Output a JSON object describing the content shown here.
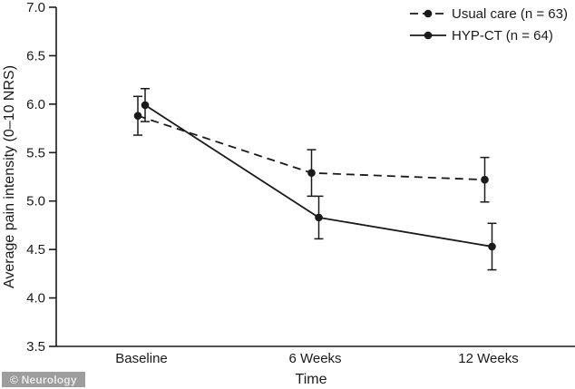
{
  "watermark": {
    "text": "© Neurology",
    "bg_color": "#9d9d9d",
    "text_color": "#e8e8e8"
  },
  "chart_data": {
    "type": "line",
    "title": "",
    "xlabel": "Time",
    "ylabel": "Average pain intensity (0–10 NRS)",
    "categories": [
      "Baseline",
      "6 Weeks",
      "12 Weeks"
    ],
    "ylim": [
      3.5,
      7.0
    ],
    "yticks": [
      3.5,
      4.0,
      4.5,
      5.0,
      5.5,
      6.0,
      6.5,
      7.0
    ],
    "ytick_labels": [
      "3.5",
      "4.0",
      "4.5",
      "5.0",
      "5.5",
      "6.0",
      "6.5",
      "7.0"
    ],
    "grid": false,
    "legend_position": "top-right",
    "axis_color": "#1a1a1a",
    "series": [
      {
        "name": "Usual care (n = 63)",
        "line_style": "dashed",
        "marker": "circle",
        "color": "#1a1a1a",
        "values": [
          5.88,
          5.29,
          5.22
        ],
        "error_bars": [
          0.2,
          0.24,
          0.23
        ]
      },
      {
        "name": "HYP-CT (n = 64)",
        "line_style": "solid",
        "marker": "circle",
        "color": "#1a1a1a",
        "values": [
          5.99,
          4.83,
          4.53
        ],
        "error_bars": [
          0.17,
          0.22,
          0.24
        ]
      }
    ]
  }
}
